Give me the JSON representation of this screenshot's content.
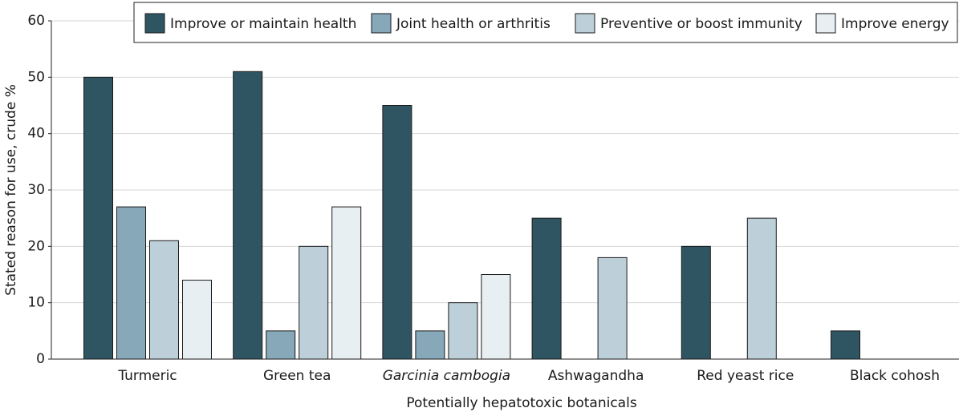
{
  "chart_data": {
    "type": "bar",
    "x_label": "Potentially hepatotoxic botanicals",
    "y_label": "Stated reason for use, crude %",
    "categories": [
      "Turmeric",
      "Green tea",
      "Garcinia cambogia",
      "Ashwagandha",
      "Red yeast rice",
      "Black cohosh"
    ],
    "series": [
      {
        "name": "Improve or maintain health",
        "color": "#2f5563",
        "values": [
          50,
          51,
          45,
          25,
          20,
          5
        ]
      },
      {
        "name": "Joint health or arthritis",
        "color": "#87a8b8",
        "values": [
          27,
          5,
          5,
          null,
          null,
          null
        ]
      },
      {
        "name": "Preventive or boost immunity",
        "color": "#bdd0d9",
        "values": [
          21,
          20,
          10,
          18,
          25,
          null
        ]
      },
      {
        "name": "Improve energy",
        "color": "#e8eff2",
        "values": [
          14,
          27,
          15,
          null,
          null,
          null
        ]
      }
    ],
    "ylim": [
      0,
      60
    ],
    "yticks": [
      0,
      10,
      20,
      30,
      40,
      50,
      60
    ],
    "grid": true,
    "legend": "top-right"
  }
}
